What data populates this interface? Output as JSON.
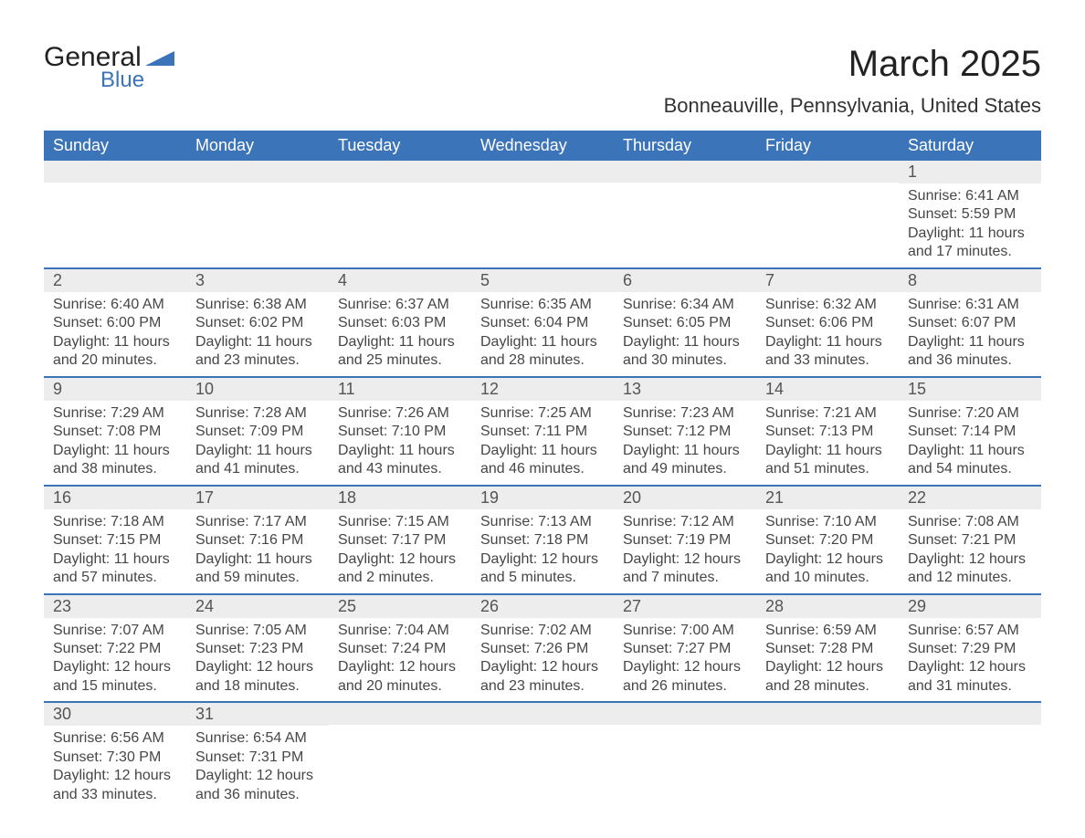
{
  "logo": {
    "text1": "General",
    "text2": "Blue",
    "accent_color": "#3b74b9"
  },
  "title": "March 2025",
  "subtitle": "Bonneauville, Pennsylvania, United States",
  "colors": {
    "header_bg": "#3b74b9",
    "header_text": "#ffffff",
    "daynum_bg": "#ededed",
    "row_border": "#3b74b9",
    "body_text": "#464646"
  },
  "fonts": {
    "title_pt": 40,
    "sub_pt": 22,
    "header_pt": 18,
    "body_pt": 16
  },
  "day_headers": [
    "Sunday",
    "Monday",
    "Tuesday",
    "Wednesday",
    "Thursday",
    "Friday",
    "Saturday"
  ],
  "weeks": [
    [
      null,
      null,
      null,
      null,
      null,
      null,
      {
        "n": "1",
        "sr": "Sunrise: 6:41 AM",
        "ss": "Sunset: 5:59 PM",
        "d1": "Daylight: 11 hours",
        "d2": "and 17 minutes."
      }
    ],
    [
      {
        "n": "2",
        "sr": "Sunrise: 6:40 AM",
        "ss": "Sunset: 6:00 PM",
        "d1": "Daylight: 11 hours",
        "d2": "and 20 minutes."
      },
      {
        "n": "3",
        "sr": "Sunrise: 6:38 AM",
        "ss": "Sunset: 6:02 PM",
        "d1": "Daylight: 11 hours",
        "d2": "and 23 minutes."
      },
      {
        "n": "4",
        "sr": "Sunrise: 6:37 AM",
        "ss": "Sunset: 6:03 PM",
        "d1": "Daylight: 11 hours",
        "d2": "and 25 minutes."
      },
      {
        "n": "5",
        "sr": "Sunrise: 6:35 AM",
        "ss": "Sunset: 6:04 PM",
        "d1": "Daylight: 11 hours",
        "d2": "and 28 minutes."
      },
      {
        "n": "6",
        "sr": "Sunrise: 6:34 AM",
        "ss": "Sunset: 6:05 PM",
        "d1": "Daylight: 11 hours",
        "d2": "and 30 minutes."
      },
      {
        "n": "7",
        "sr": "Sunrise: 6:32 AM",
        "ss": "Sunset: 6:06 PM",
        "d1": "Daylight: 11 hours",
        "d2": "and 33 minutes."
      },
      {
        "n": "8",
        "sr": "Sunrise: 6:31 AM",
        "ss": "Sunset: 6:07 PM",
        "d1": "Daylight: 11 hours",
        "d2": "and 36 minutes."
      }
    ],
    [
      {
        "n": "9",
        "sr": "Sunrise: 7:29 AM",
        "ss": "Sunset: 7:08 PM",
        "d1": "Daylight: 11 hours",
        "d2": "and 38 minutes."
      },
      {
        "n": "10",
        "sr": "Sunrise: 7:28 AM",
        "ss": "Sunset: 7:09 PM",
        "d1": "Daylight: 11 hours",
        "d2": "and 41 minutes."
      },
      {
        "n": "11",
        "sr": "Sunrise: 7:26 AM",
        "ss": "Sunset: 7:10 PM",
        "d1": "Daylight: 11 hours",
        "d2": "and 43 minutes."
      },
      {
        "n": "12",
        "sr": "Sunrise: 7:25 AM",
        "ss": "Sunset: 7:11 PM",
        "d1": "Daylight: 11 hours",
        "d2": "and 46 minutes."
      },
      {
        "n": "13",
        "sr": "Sunrise: 7:23 AM",
        "ss": "Sunset: 7:12 PM",
        "d1": "Daylight: 11 hours",
        "d2": "and 49 minutes."
      },
      {
        "n": "14",
        "sr": "Sunrise: 7:21 AM",
        "ss": "Sunset: 7:13 PM",
        "d1": "Daylight: 11 hours",
        "d2": "and 51 minutes."
      },
      {
        "n": "15",
        "sr": "Sunrise: 7:20 AM",
        "ss": "Sunset: 7:14 PM",
        "d1": "Daylight: 11 hours",
        "d2": "and 54 minutes."
      }
    ],
    [
      {
        "n": "16",
        "sr": "Sunrise: 7:18 AM",
        "ss": "Sunset: 7:15 PM",
        "d1": "Daylight: 11 hours",
        "d2": "and 57 minutes."
      },
      {
        "n": "17",
        "sr": "Sunrise: 7:17 AM",
        "ss": "Sunset: 7:16 PM",
        "d1": "Daylight: 11 hours",
        "d2": "and 59 minutes."
      },
      {
        "n": "18",
        "sr": "Sunrise: 7:15 AM",
        "ss": "Sunset: 7:17 PM",
        "d1": "Daylight: 12 hours",
        "d2": "and 2 minutes."
      },
      {
        "n": "19",
        "sr": "Sunrise: 7:13 AM",
        "ss": "Sunset: 7:18 PM",
        "d1": "Daylight: 12 hours",
        "d2": "and 5 minutes."
      },
      {
        "n": "20",
        "sr": "Sunrise: 7:12 AM",
        "ss": "Sunset: 7:19 PM",
        "d1": "Daylight: 12 hours",
        "d2": "and 7 minutes."
      },
      {
        "n": "21",
        "sr": "Sunrise: 7:10 AM",
        "ss": "Sunset: 7:20 PM",
        "d1": "Daylight: 12 hours",
        "d2": "and 10 minutes."
      },
      {
        "n": "22",
        "sr": "Sunrise: 7:08 AM",
        "ss": "Sunset: 7:21 PM",
        "d1": "Daylight: 12 hours",
        "d2": "and 12 minutes."
      }
    ],
    [
      {
        "n": "23",
        "sr": "Sunrise: 7:07 AM",
        "ss": "Sunset: 7:22 PM",
        "d1": "Daylight: 12 hours",
        "d2": "and 15 minutes."
      },
      {
        "n": "24",
        "sr": "Sunrise: 7:05 AM",
        "ss": "Sunset: 7:23 PM",
        "d1": "Daylight: 12 hours",
        "d2": "and 18 minutes."
      },
      {
        "n": "25",
        "sr": "Sunrise: 7:04 AM",
        "ss": "Sunset: 7:24 PM",
        "d1": "Daylight: 12 hours",
        "d2": "and 20 minutes."
      },
      {
        "n": "26",
        "sr": "Sunrise: 7:02 AM",
        "ss": "Sunset: 7:26 PM",
        "d1": "Daylight: 12 hours",
        "d2": "and 23 minutes."
      },
      {
        "n": "27",
        "sr": "Sunrise: 7:00 AM",
        "ss": "Sunset: 7:27 PM",
        "d1": "Daylight: 12 hours",
        "d2": "and 26 minutes."
      },
      {
        "n": "28",
        "sr": "Sunrise: 6:59 AM",
        "ss": "Sunset: 7:28 PM",
        "d1": "Daylight: 12 hours",
        "d2": "and 28 minutes."
      },
      {
        "n": "29",
        "sr": "Sunrise: 6:57 AM",
        "ss": "Sunset: 7:29 PM",
        "d1": "Daylight: 12 hours",
        "d2": "and 31 minutes."
      }
    ],
    [
      {
        "n": "30",
        "sr": "Sunrise: 6:56 AM",
        "ss": "Sunset: 7:30 PM",
        "d1": "Daylight: 12 hours",
        "d2": "and 33 minutes."
      },
      {
        "n": "31",
        "sr": "Sunrise: 6:54 AM",
        "ss": "Sunset: 7:31 PM",
        "d1": "Daylight: 12 hours",
        "d2": "and 36 minutes."
      },
      null,
      null,
      null,
      null,
      null
    ]
  ]
}
